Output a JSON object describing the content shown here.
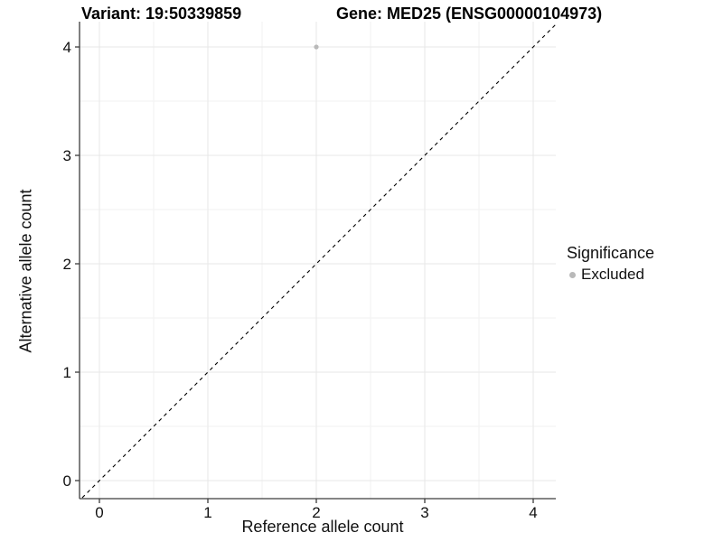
{
  "header": {
    "variant_title": "Variant: 19:50339859",
    "gene_title": "Gene: MED25 (ENSG00000104973)"
  },
  "legend": {
    "title": "Significance",
    "items": [
      {
        "label": "Excluded",
        "color": "#b9b9b9"
      }
    ]
  },
  "chart_data": {
    "type": "scatter",
    "title": "Variant: 19:50339859   Gene: MED25 (ENSG00000104973)",
    "xlabel": "Reference allele count",
    "ylabel": "Alternative allele count",
    "xlim": [
      -0.2,
      4.2
    ],
    "ylim": [
      -0.2,
      4.2
    ],
    "x_ticks": [
      0,
      1,
      2,
      3,
      4
    ],
    "y_ticks": [
      0,
      1,
      2,
      3,
      4
    ],
    "x_minor_ticks": [
      0.5,
      1.5,
      2.5,
      3.5
    ],
    "y_minor_ticks": [
      0.5,
      1.5,
      2.5,
      3.5
    ],
    "grid": true,
    "legend_position": "right",
    "series": [
      {
        "name": "Excluded",
        "color": "#b9b9b9",
        "points": [
          {
            "x": 2,
            "y": 4
          }
        ]
      }
    ],
    "reference_line": {
      "type": "identity",
      "equation": "y = x",
      "style": "dashed",
      "color": "#000000"
    },
    "style": {
      "grid_major_color": "#e7e7e7",
      "grid_minor_color": "#f2f2f2",
      "axis_line_color": "#3c3c3c",
      "tick_label_color": "#111111",
      "background": "#ffffff"
    }
  }
}
